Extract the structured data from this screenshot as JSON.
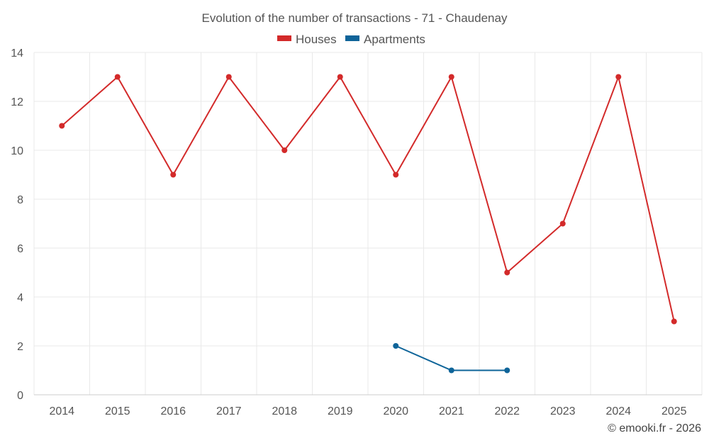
{
  "chart_data": {
    "type": "line",
    "title": "Evolution of the number of transactions - 71 - Chaudenay",
    "x": [
      "2014",
      "2015",
      "2016",
      "2017",
      "2018",
      "2019",
      "2020",
      "2021",
      "2022",
      "2023",
      "2024",
      "2025"
    ],
    "ylim": [
      0,
      14
    ],
    "yticks": [
      0,
      2,
      4,
      6,
      8,
      10,
      12,
      14
    ],
    "grid": true,
    "legend_position": "top-center",
    "series": [
      {
        "name": "Houses",
        "color": "#d32a2a",
        "values": [
          11,
          13,
          9,
          13,
          10,
          13,
          9,
          13,
          5,
          7,
          13,
          3
        ]
      },
      {
        "name": "Apartments",
        "color": "#0e6499",
        "values": [
          null,
          null,
          null,
          null,
          null,
          null,
          2,
          1,
          1,
          null,
          null,
          null
        ]
      }
    ]
  },
  "credit": "© emooki.fr - 2026"
}
